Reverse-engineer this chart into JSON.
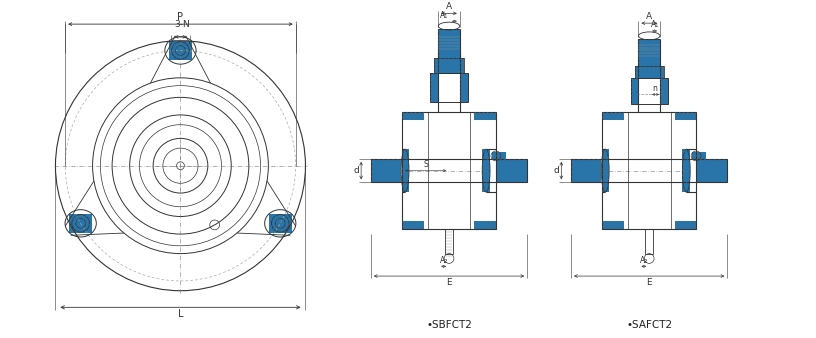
{
  "bg_color": "#ffffff",
  "line_color": "#333333",
  "dim_color": "#333333",
  "center_color": "#777777",
  "hatch_color": "#666666",
  "label1": "SBFCT2",
  "label2": "SAFCT2",
  "dims": {
    "P": "P",
    "3N": "3-N",
    "L": "L",
    "A": "A",
    "A1": "A₁",
    "A2": "A₂",
    "E": "E",
    "S": "S",
    "d": "d",
    "n": "n"
  }
}
